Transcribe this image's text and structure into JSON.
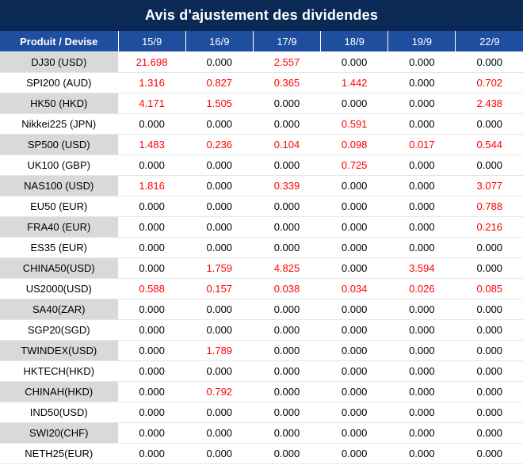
{
  "title": "Avis d'ajustement des dividendes",
  "columns": [
    "Produit / Devise",
    "15/9",
    "16/9",
    "17/9",
    "18/9",
    "19/9",
    "22/9"
  ],
  "colors": {
    "title_bg": "#0a2a55",
    "header_bg": "#1f4e9e",
    "positive": "#ff0000",
    "shade": "#d9d9d9"
  },
  "rows": [
    {
      "product": "DJ30 (USD)",
      "values": [
        "21.698",
        "0.000",
        "2.557",
        "0.000",
        "0.000",
        "0.000"
      ]
    },
    {
      "product": "SPI200 (AUD)",
      "values": [
        "1.316",
        "0.827",
        "0.365",
        "1.442",
        "0.000",
        "0.702"
      ]
    },
    {
      "product": "HK50 (HKD)",
      "values": [
        "4.171",
        "1.505",
        "0.000",
        "0.000",
        "0.000",
        "2.438"
      ]
    },
    {
      "product": "Nikkei225 (JPN)",
      "values": [
        "0.000",
        "0.000",
        "0.000",
        "0.591",
        "0.000",
        "0.000"
      ]
    },
    {
      "product": "SP500 (USD)",
      "values": [
        "1.483",
        "0.236",
        "0.104",
        "0.098",
        "0.017",
        "0.544"
      ]
    },
    {
      "product": "UK100 (GBP)",
      "values": [
        "0.000",
        "0.000",
        "0.000",
        "0.725",
        "0.000",
        "0.000"
      ]
    },
    {
      "product": "NAS100 (USD)",
      "values": [
        "1.816",
        "0.000",
        "0.339",
        "0.000",
        "0.000",
        "3.077"
      ]
    },
    {
      "product": "EU50 (EUR)",
      "values": [
        "0.000",
        "0.000",
        "0.000",
        "0.000",
        "0.000",
        "0.788"
      ]
    },
    {
      "product": "FRA40 (EUR)",
      "values": [
        "0.000",
        "0.000",
        "0.000",
        "0.000",
        "0.000",
        "0.216"
      ]
    },
    {
      "product": "ES35 (EUR)",
      "values": [
        "0.000",
        "0.000",
        "0.000",
        "0.000",
        "0.000",
        "0.000"
      ]
    },
    {
      "product": "CHINA50(USD)",
      "values": [
        "0.000",
        "1.759",
        "4.825",
        "0.000",
        "3.594",
        "0.000"
      ]
    },
    {
      "product": "US2000(USD)",
      "values": [
        "0.588",
        "0.157",
        "0.038",
        "0.034",
        "0.026",
        "0.085"
      ]
    },
    {
      "product": "SA40(ZAR)",
      "values": [
        "0.000",
        "0.000",
        "0.000",
        "0.000",
        "0.000",
        "0.000"
      ]
    },
    {
      "product": "SGP20(SGD)",
      "values": [
        "0.000",
        "0.000",
        "0.000",
        "0.000",
        "0.000",
        "0.000"
      ]
    },
    {
      "product": "TWINDEX(USD)",
      "values": [
        "0.000",
        "1.789",
        "0.000",
        "0.000",
        "0.000",
        "0.000"
      ]
    },
    {
      "product": "HKTECH(HKD)",
      "values": [
        "0.000",
        "0.000",
        "0.000",
        "0.000",
        "0.000",
        "0.000"
      ]
    },
    {
      "product": "CHINAH(HKD)",
      "values": [
        "0.000",
        "0.792",
        "0.000",
        "0.000",
        "0.000",
        "0.000"
      ]
    },
    {
      "product": "IND50(USD)",
      "values": [
        "0.000",
        "0.000",
        "0.000",
        "0.000",
        "0.000",
        "0.000"
      ]
    },
    {
      "product": "SWI20(CHF)",
      "values": [
        "0.000",
        "0.000",
        "0.000",
        "0.000",
        "0.000",
        "0.000"
      ]
    },
    {
      "product": "NETH25(EUR)",
      "values": [
        "0.000",
        "0.000",
        "0.000",
        "0.000",
        "0.000",
        "0.000"
      ]
    }
  ]
}
